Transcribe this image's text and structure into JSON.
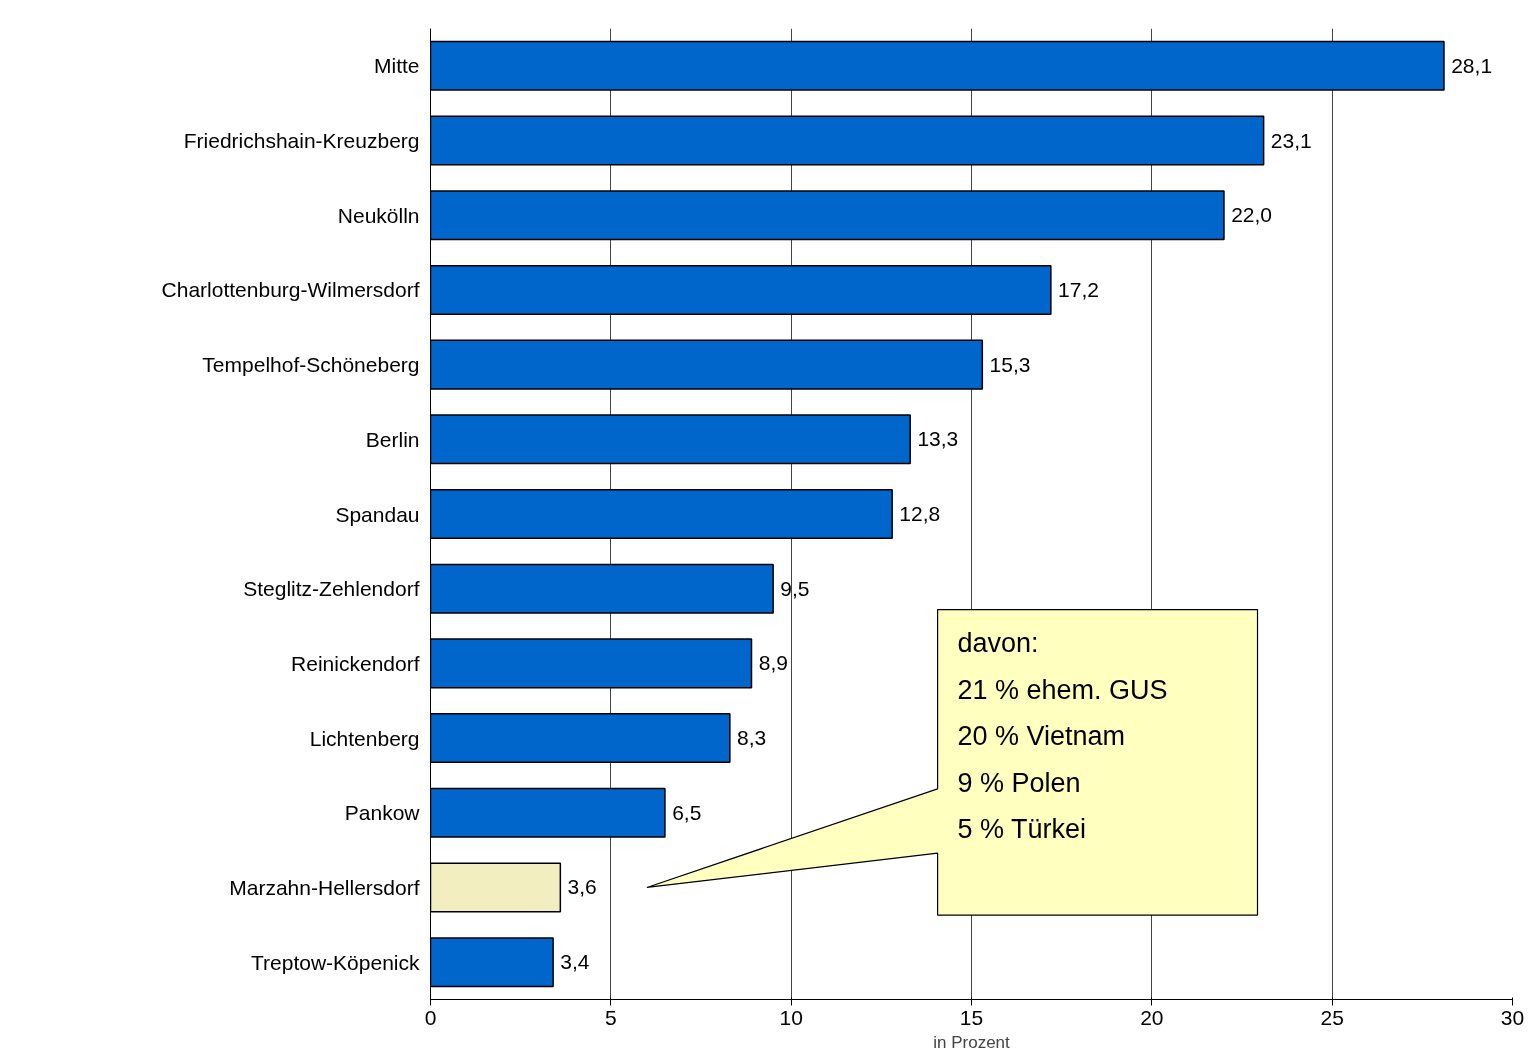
{
  "chart_data": {
    "type": "bar",
    "orientation": "horizontal",
    "xlabel": "in Prozent",
    "categories": [
      "Mitte",
      "Friedrichshain-Kreuzberg",
      "Neukölln",
      "Charlottenburg-Wilmersdorf",
      "Tempelhof-Schöneberg",
      "Berlin",
      "Spandau",
      "Steglitz-Zehlendorf",
      "Reinickendorf",
      "Lichtenberg",
      "Pankow",
      "Marzahn-Hellersdorf",
      "Treptow-Köpenick"
    ],
    "values": [
      28.1,
      23.1,
      22.0,
      17.2,
      15.3,
      13.3,
      12.8,
      9.5,
      8.9,
      8.3,
      6.5,
      3.6,
      3.4
    ],
    "value_labels": [
      "28,1",
      "23,1",
      "22,0",
      "17,2",
      "15,3",
      "13,3",
      "12,8",
      "9,5",
      "8,9",
      "8,3",
      "6,5",
      "3,6",
      "3,4"
    ],
    "colors": [
      "#0066cc",
      "#0066cc",
      "#0066cc",
      "#0066cc",
      "#0066cc",
      "#0066cc",
      "#0066cc",
      "#0066cc",
      "#0066cc",
      "#0066cc",
      "#0066cc",
      "#f2eec0",
      "#0066cc"
    ],
    "xlim": [
      0,
      30
    ],
    "xticks": [
      0,
      5,
      10,
      15,
      20,
      25,
      30
    ],
    "grid": "x",
    "annotations": [
      "davon:\n21 % ehem. GUS\n20 % Vietnam\n  9  % Polen\n  5  % Türkei"
    ]
  }
}
